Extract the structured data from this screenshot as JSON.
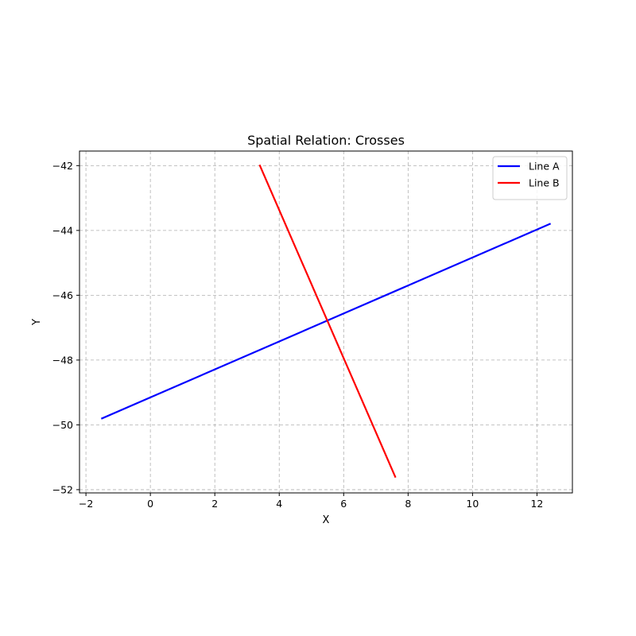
{
  "chart_data": {
    "type": "line",
    "title": "Spatial Relation: Crosses",
    "xlabel": "X",
    "ylabel": "Y",
    "xlim": [
      -2.2,
      13.1
    ],
    "ylim": [
      -52.1,
      -41.55
    ],
    "xticks": [
      -2,
      0,
      2,
      4,
      6,
      8,
      10,
      12
    ],
    "yticks": [
      -52,
      -50,
      -48,
      -46,
      -44,
      -42
    ],
    "grid": true,
    "legend_position": "top-right",
    "series": [
      {
        "name": "Line A",
        "color": "#0000ff",
        "points": [
          [
            -1.5,
            -49.8
          ],
          [
            12.4,
            -43.8
          ]
        ]
      },
      {
        "name": "Line B",
        "color": "#ff0000",
        "points": [
          [
            3.4,
            -42.0
          ],
          [
            7.6,
            -51.6
          ]
        ]
      }
    ]
  }
}
